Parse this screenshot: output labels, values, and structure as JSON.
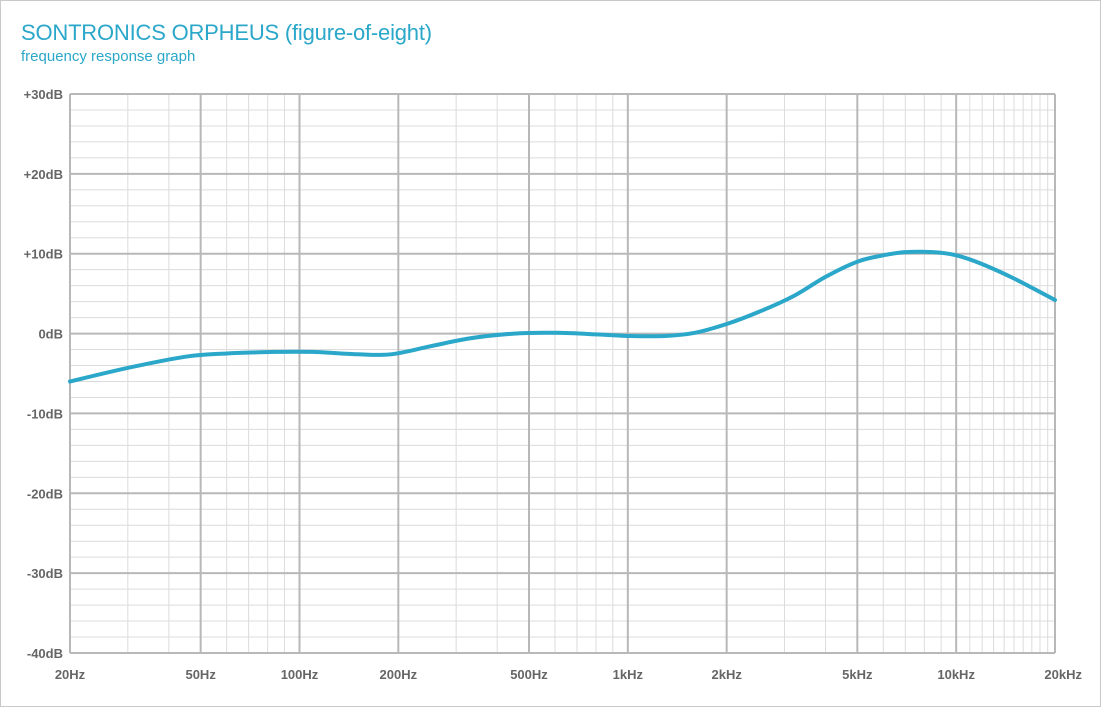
{
  "title": "SONTRONICS ORPHEUS (figure-of-eight)",
  "subtitle": "frequency response graph",
  "colors": {
    "accent": "#2aa7c9",
    "curve": "#2aa7c9",
    "grid_major": "#b8b8b8",
    "grid_minor": "#dcdcdc",
    "tick_text": "#666666"
  },
  "chart_data": {
    "type": "line",
    "title": "SONTRONICS ORPHEUS (figure-of-eight)",
    "subtitle": "frequency response graph",
    "xlabel": "",
    "ylabel": "",
    "x_scale": "log",
    "xlim": [
      20,
      20000
    ],
    "ylim": [
      -40,
      30
    ],
    "grid": true,
    "x_ticks": [
      {
        "value": 20,
        "label": "20Hz"
      },
      {
        "value": 50,
        "label": "50Hz"
      },
      {
        "value": 100,
        "label": "100Hz"
      },
      {
        "value": 200,
        "label": "200Hz"
      },
      {
        "value": 500,
        "label": "500Hz"
      },
      {
        "value": 1000,
        "label": "1kHz"
      },
      {
        "value": 2000,
        "label": "2kHz"
      },
      {
        "value": 5000,
        "label": "5kHz"
      },
      {
        "value": 10000,
        "label": "10kHz"
      },
      {
        "value": 20000,
        "label": "20kHz"
      }
    ],
    "y_ticks": [
      {
        "value": 30,
        "label": "+30dB"
      },
      {
        "value": 20,
        "label": "+20dB"
      },
      {
        "value": 10,
        "label": "+10dB"
      },
      {
        "value": 0,
        "label": "0dB"
      },
      {
        "value": -10,
        "label": "-10dB"
      },
      {
        "value": -20,
        "label": "-20dB"
      },
      {
        "value": -30,
        "label": "-30dB"
      },
      {
        "value": -40,
        "label": "-40dB"
      }
    ],
    "series": [
      {
        "x": [
          20,
          30,
          45,
          60,
          85,
          110,
          150,
          190,
          250,
          330,
          450,
          600,
          800,
          1000,
          1300,
          1600,
          2000,
          2500,
          3200,
          4000,
          5000,
          6000,
          7000,
          8500,
          10000,
          12000,
          15000,
          20000
        ],
        "y": [
          -6,
          -4.3,
          -2.9,
          -2.5,
          -2.3,
          -2.3,
          -2.6,
          -2.6,
          -1.6,
          -0.6,
          0,
          0.1,
          -0.1,
          -0.3,
          -0.3,
          0.1,
          1.2,
          2.7,
          4.7,
          7.1,
          9,
          9.8,
          10.2,
          10.2,
          9.8,
          8.7,
          6.9,
          4.2
        ]
      }
    ]
  }
}
